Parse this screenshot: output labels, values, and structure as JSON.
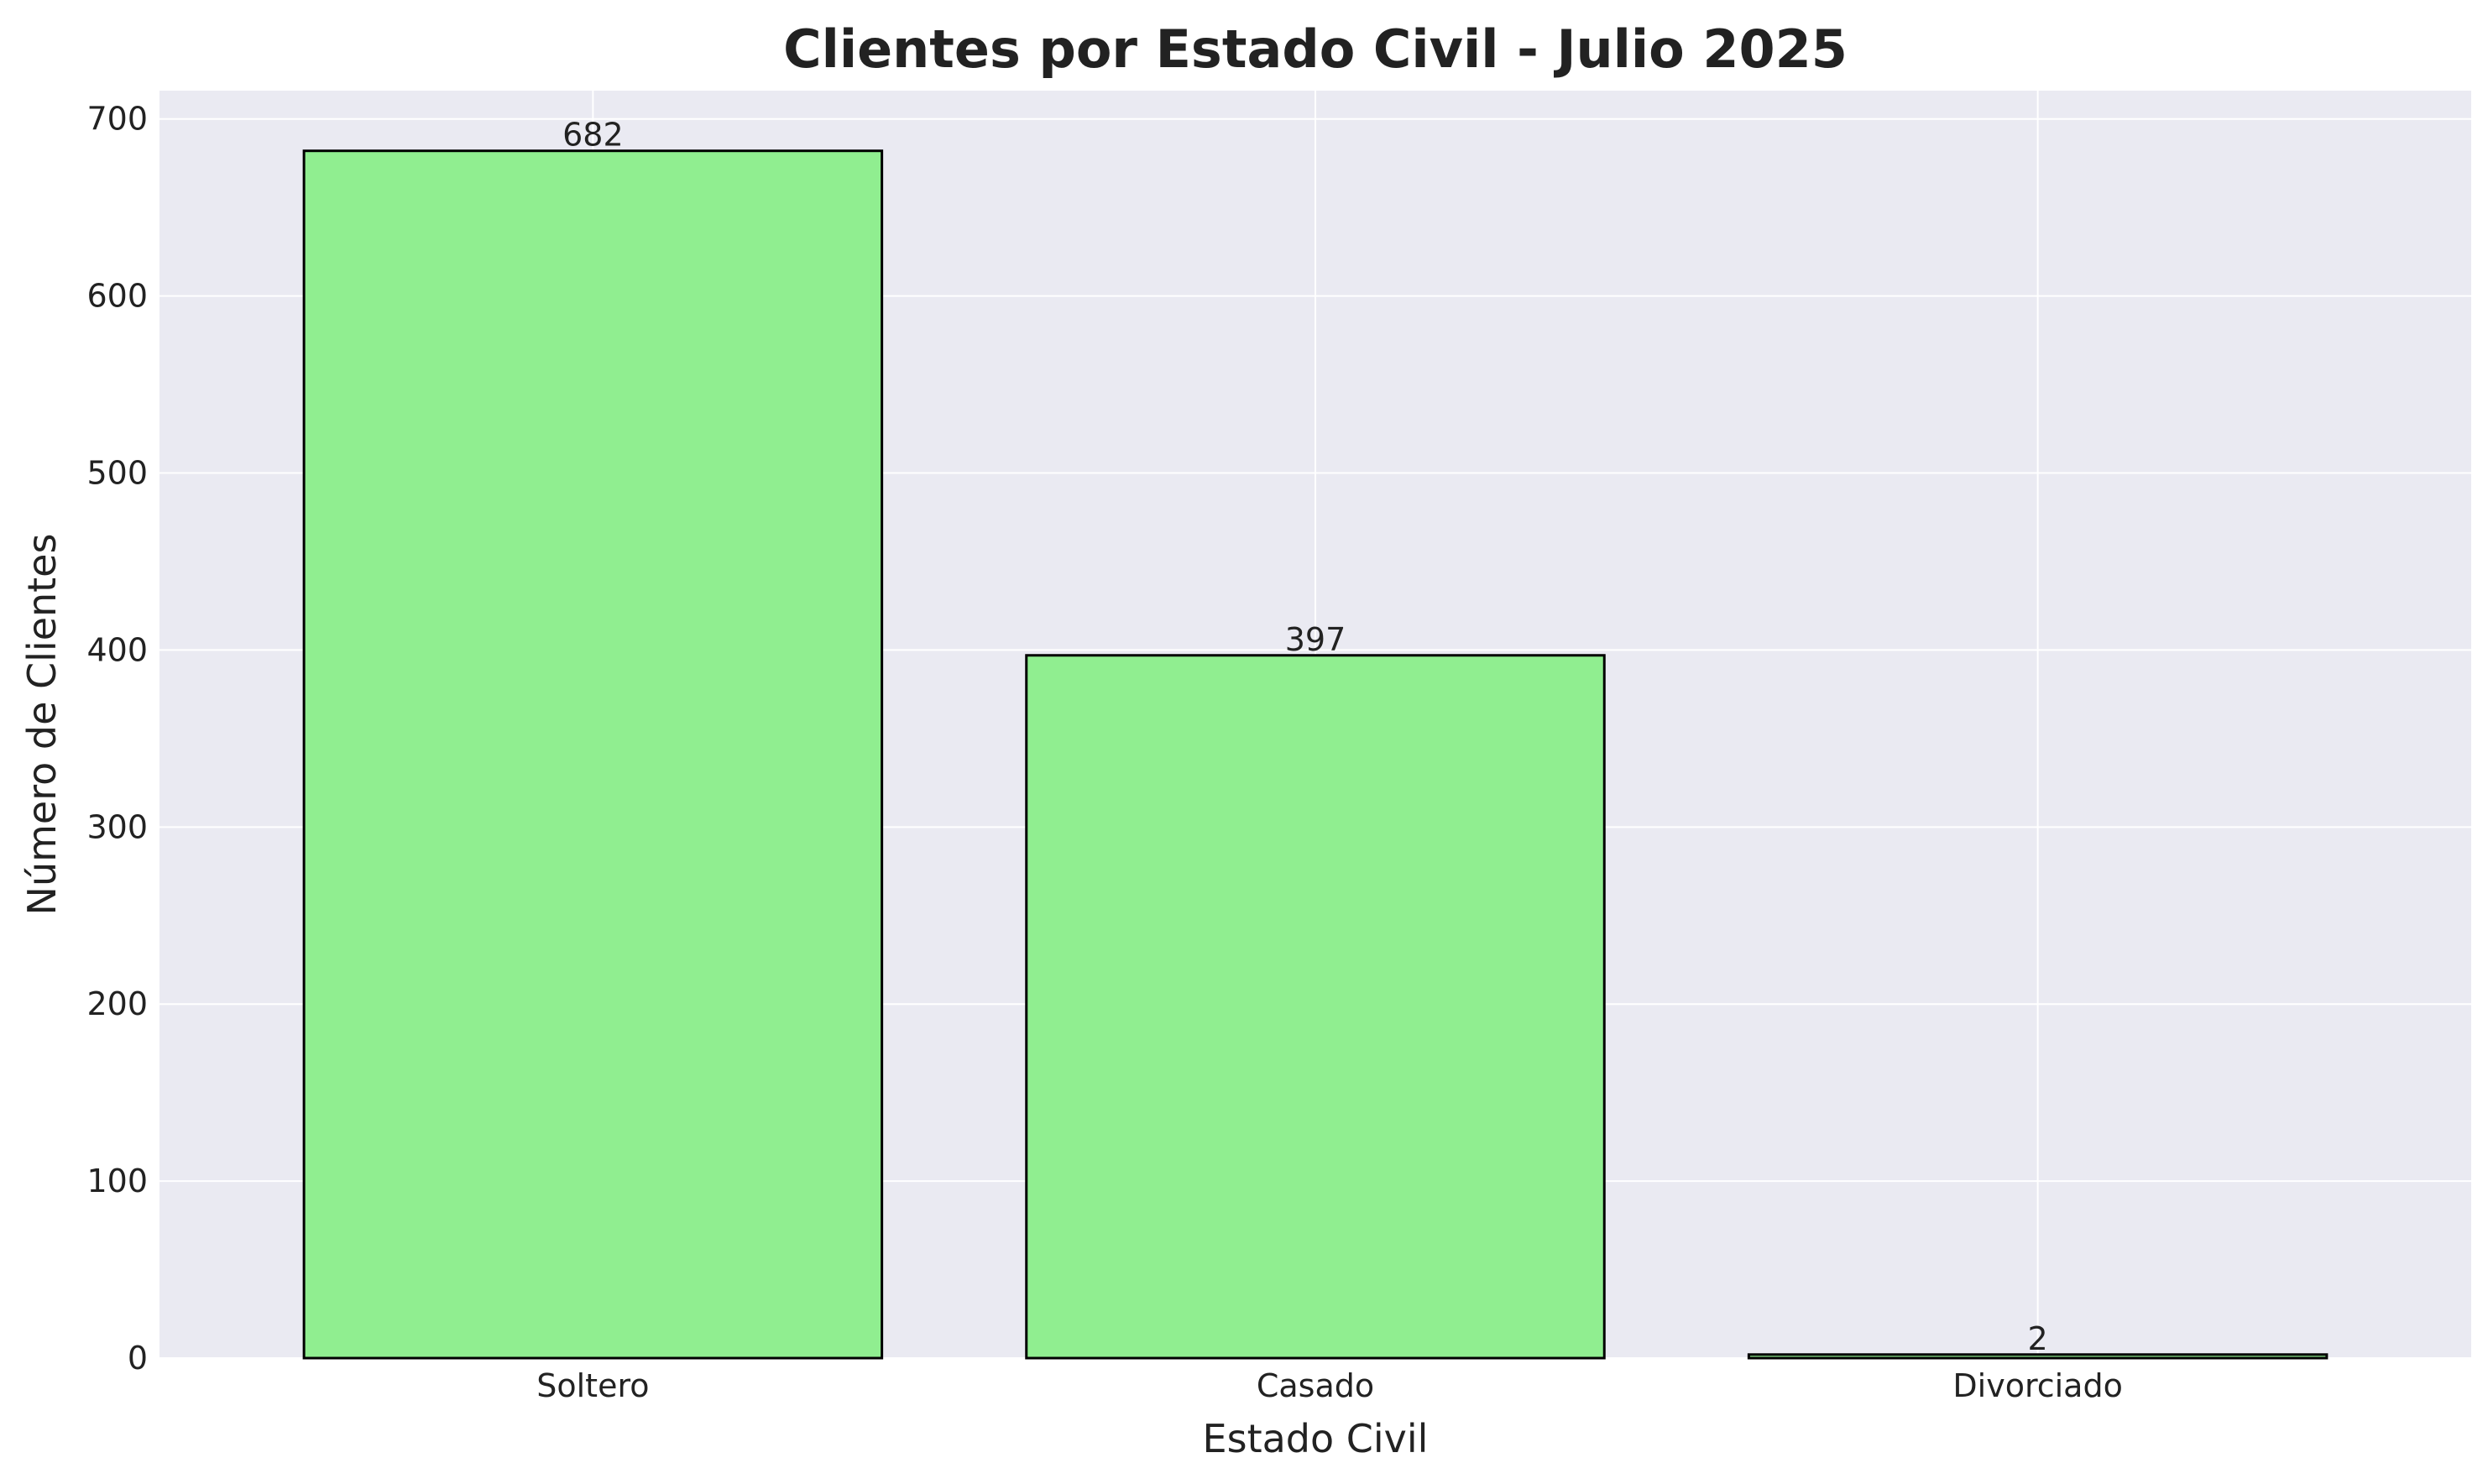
{
  "chart_data": {
    "type": "bar",
    "title": "Clientes por Estado Civil - Julio 2025",
    "xlabel": "Estado Civil",
    "ylabel": "Número de Clientes",
    "categories": [
      "Soltero",
      "Casado",
      "Divorciado"
    ],
    "values": [
      682,
      397,
      2
    ],
    "data_labels": [
      "682",
      "397",
      "2"
    ],
    "yticks": [
      0,
      100,
      200,
      300,
      400,
      500,
      600,
      700
    ],
    "ylim": [
      0,
      716
    ],
    "grid": true,
    "legend": "none",
    "colors": {
      "bar_fill": "#90ee90",
      "bar_edge": "#000000",
      "plot_background": "#eaeaf2",
      "grid": "#ffffff",
      "text": "#222222"
    }
  }
}
